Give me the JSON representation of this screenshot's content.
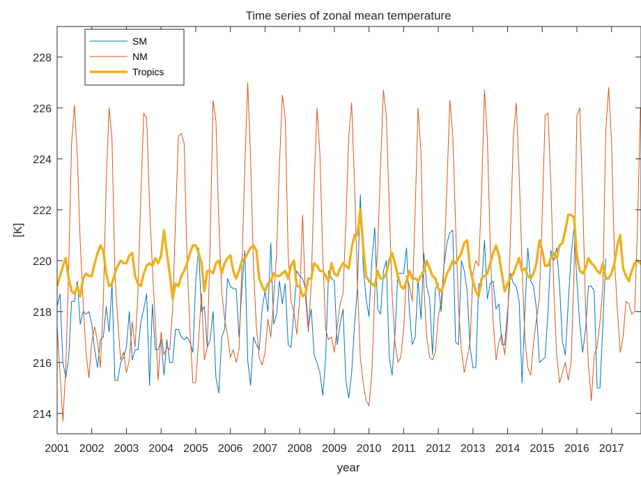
{
  "colors": {
    "sm": "#0072BD",
    "nm": "#D95319",
    "tropics": "#EDB120",
    "axis": "#262626"
  },
  "chart_data": {
    "type": "line",
    "title": "Time series of zonal mean temperature",
    "xlabel": "year",
    "ylabel": "[K]",
    "xlim": [
      2001,
      2017.85
    ],
    "ylim": [
      213.2,
      229.2
    ],
    "xticks": [
      2001,
      2002,
      2003,
      2004,
      2005,
      2006,
      2007,
      2008,
      2009,
      2010,
      2011,
      2012,
      2013,
      2014,
      2015,
      2016,
      2017
    ],
    "xtick_labels": [
      "2001",
      "2002",
      "2003",
      "2004",
      "2005",
      "2006",
      "2007",
      "2008",
      "2009",
      "2010",
      "2011",
      "2012",
      "2013",
      "2014",
      "2015",
      "2016",
      "2017"
    ],
    "yticks": [
      214,
      216,
      218,
      220,
      222,
      224,
      226,
      228
    ],
    "ytick_labels": [
      "214",
      "216",
      "218",
      "220",
      "222",
      "224",
      "226",
      "228"
    ],
    "grid": false,
    "legend_position": "top-left",
    "sampling": "monthly",
    "start": "2001-01",
    "series": [
      {
        "name": "SM",
        "color": "#0072BD",
        "line_width": 1,
        "values": [
          218.2,
          218.7,
          216.0,
          215.4,
          216.2,
          218.4,
          218.4,
          219.2,
          217.5,
          218.0,
          217.9,
          218.0,
          217.5,
          216.5,
          215.8,
          216.9,
          217.0,
          218.2,
          217.2,
          219.1,
          215.3,
          215.3,
          216.0,
          216.2,
          216.6,
          218.0,
          216.1,
          216.5,
          216.5,
          217.6,
          218.1,
          218.7,
          215.1,
          218.3,
          216.5,
          216.5,
          216.9,
          215.5,
          216.9,
          216.0,
          216.0,
          217.3,
          217.3,
          217.0,
          216.9,
          217.0,
          216.8,
          216.4,
          219.2,
          220.5,
          218.0,
          218.2,
          216.6,
          216.9,
          218.0,
          215.4,
          214.8,
          217.0,
          217.3,
          219.3,
          219.0,
          218.9,
          218.9,
          217.0,
          218.9,
          220.4,
          216.1,
          215.1,
          217.0,
          216.7,
          216.5,
          218.1,
          218.8,
          218.0,
          220.7,
          217.5,
          217.9,
          219.2,
          218.3,
          219.1,
          216.7,
          216.6,
          218.0,
          219.6,
          219.4,
          219.3,
          218.9,
          217.4,
          218.1,
          216.3,
          216.0,
          215.6,
          214.7,
          216.2,
          219.6,
          219.3,
          219.2,
          216.7,
          217.5,
          218.1,
          215.3,
          214.6,
          215.6,
          217.5,
          218.9,
          222.6,
          219.8,
          218.5,
          217.8,
          220.0,
          221.3,
          218.1,
          217.9,
          219.6,
          220.0,
          216.2,
          215.5,
          217.1,
          219.5,
          219.5,
          219.5,
          220.5,
          218.0,
          216.7,
          217.0,
          219.3,
          217.7,
          220.3,
          219.0,
          218.5,
          216.3,
          218.9,
          219.1,
          218.0,
          219.8,
          220.7,
          221.1,
          221.2,
          216.8,
          216.7,
          220.0,
          219.6,
          218.8,
          216.6,
          215.8,
          215.8,
          219.1,
          219.0,
          220.8,
          218.5,
          219.1,
          219.2,
          218.1,
          218.3,
          216.7,
          216.7,
          218.0,
          219.5,
          219.1,
          219.0,
          218.4,
          215.2,
          218.0,
          220.5,
          219.2,
          219.0,
          218.1,
          216.0,
          216.1,
          216.2,
          218.0,
          220.4,
          220.0,
          220.5,
          219.0,
          216.8,
          216.3,
          218.3,
          220.2,
          221.3,
          219.2,
          217.5,
          216.4,
          217.3,
          219.0,
          219.0,
          218.8,
          215.0,
          215.0,
          217.5,
          220.1
        ]
      },
      {
        "name": "NM",
        "color": "#D95319",
        "line_width": 1,
        "values": [
          217.4,
          215.6,
          213.7,
          215.8,
          219.7,
          224.6,
          226.1,
          224.1,
          220.7,
          218.4,
          216.4,
          215.4,
          216.8,
          217.4,
          216.8,
          215.8,
          218.4,
          223.1,
          226.0,
          224.8,
          219.5,
          217.6,
          216.1,
          216.4,
          215.6,
          216.1,
          217.6,
          216.6,
          218.8,
          222.6,
          225.8,
          225.6,
          222.2,
          219.7,
          217.6,
          215.3,
          217.2,
          216.3,
          216.6,
          216.5,
          218.1,
          221.6,
          224.9,
          225.0,
          224.6,
          220.0,
          217.3,
          215.2,
          215.2,
          216.9,
          218.7,
          216.1,
          216.6,
          220.7,
          226.3,
          225.5,
          221.5,
          218.8,
          217.7,
          217.1,
          216.2,
          216.5,
          216.0,
          216.5,
          219.8,
          223.7,
          227.0,
          224.0,
          219.7,
          217.4,
          216.2,
          215.9,
          216.4,
          217.7,
          217.0,
          218.5,
          220.3,
          223.8,
          226.5,
          225.6,
          220.3,
          218.4,
          218.0,
          217.1,
          218.5,
          221.8,
          218.6,
          217.2,
          219.1,
          223.0,
          226.0,
          224.2,
          220.2,
          217.3,
          216.9,
          217.0,
          216.4,
          217.4,
          218.3,
          218.7,
          221.5,
          224.9,
          226.2,
          223.0,
          219.1,
          216.2,
          215.2,
          214.5,
          214.3,
          215.6,
          218.8,
          220.4,
          223.7,
          226.7,
          225.7,
          222.2,
          218.7,
          216.8,
          216.0,
          216.2,
          217.3,
          219.4,
          219.0,
          218.4,
          222.0,
          226.0,
          224.3,
          219.0,
          217.0,
          216.2,
          216.1,
          216.4,
          217.8,
          218.4,
          219.9,
          223.0,
          226.3,
          225.0,
          221.4,
          218.2,
          216.5,
          215.6,
          216.2,
          216.8,
          219.5,
          220.0,
          219.8,
          222.7,
          226.7,
          224.8,
          220.5,
          217.6,
          216.1,
          216.8,
          217.1,
          216.3,
          217.6,
          221.0,
          224.9,
          226.2,
          223.4,
          219.9,
          216.9,
          215.8,
          215.5,
          216.8,
          217.7,
          218.5,
          221.8,
          225.7,
          225.8,
          223.0,
          218.9,
          216.3,
          215.2,
          215.6,
          216.0,
          215.3,
          216.0,
          219.5,
          225.7,
          226.0,
          222.4,
          218.2,
          215.9,
          214.5,
          216.3,
          216.6,
          217.6,
          219.0,
          225.1,
          226.8,
          224.7,
          220.1,
          218.1,
          216.4,
          217.0,
          218.4,
          218.3,
          217.9,
          218.0,
          221.4,
          226.0,
          225.9
        ]
      },
      {
        "name": "Tropics",
        "color": "#EDB120",
        "line_width": 3.5,
        "values": [
          219.0,
          219.4,
          219.8,
          220.1,
          219.3,
          218.8,
          218.7,
          219.0,
          218.6,
          219.3,
          219.5,
          219.4,
          219.4,
          219.9,
          220.3,
          220.6,
          220.4,
          219.5,
          219.0,
          219.1,
          219.5,
          219.8,
          220.0,
          219.9,
          219.9,
          220.2,
          220.3,
          219.4,
          219.1,
          219.0,
          219.5,
          219.8,
          219.9,
          219.8,
          220.1,
          219.9,
          220.2,
          221.2,
          220.3,
          219.5,
          218.5,
          219.1,
          219.0,
          219.4,
          219.6,
          219.9,
          220.3,
          220.6,
          220.6,
          220.3,
          219.9,
          218.8,
          219.6,
          219.6,
          219.5,
          219.9,
          220.0,
          219.5,
          219.9,
          220.1,
          220.2,
          219.6,
          219.3,
          219.6,
          220.0,
          220.1,
          220.3,
          220.5,
          220.6,
          220.4,
          219.3,
          219.0,
          218.8,
          219.1,
          219.2,
          219.5,
          219.4,
          219.4,
          219.5,
          219.6,
          219.3,
          219.8,
          220.0,
          219.0,
          219.0,
          218.6,
          218.7,
          219.3,
          219.3,
          219.9,
          219.8,
          219.6,
          219.6,
          219.4,
          219.2,
          219.9,
          219.5,
          219.4,
          219.7,
          219.9,
          219.8,
          219.7,
          220.5,
          221.0,
          221.0,
          222.0,
          220.5,
          219.4,
          219.2,
          219.1,
          219.0,
          219.6,
          219.3,
          219.3,
          219.5,
          220.0,
          220.3,
          219.9,
          219.4,
          219.0,
          218.9,
          219.2,
          219.6,
          219.3,
          219.3,
          219.2,
          219.4,
          219.6,
          220.0,
          219.7,
          219.4,
          219.3,
          218.9,
          218.8,
          219.1,
          219.5,
          219.7,
          220.0,
          219.9,
          220.1,
          220.3,
          220.7,
          220.8,
          219.7,
          219.2,
          218.8,
          218.6,
          219.3,
          219.4,
          219.5,
          219.9,
          220.3,
          220.6,
          220.2,
          219.5,
          218.8,
          219.1,
          219.3,
          219.5,
          219.8,
          220.1,
          219.6,
          219.7,
          219.4,
          219.3,
          219.5,
          219.9,
          220.8,
          220.4,
          219.8,
          219.8,
          220.1,
          220.3,
          220.1,
          220.6,
          220.7,
          221.2,
          221.8,
          221.8,
          221.7,
          220.2,
          219.6,
          219.5,
          219.7,
          220.1,
          219.9,
          219.8,
          219.6,
          219.5,
          219.9,
          219.3,
          219.3,
          219.5,
          219.9,
          220.6,
          221.0,
          219.7,
          219.4,
          219.2,
          219.6,
          219.9,
          220.0,
          219.9,
          219.8,
          219.8,
          220.2,
          220.7
        ]
      }
    ]
  }
}
